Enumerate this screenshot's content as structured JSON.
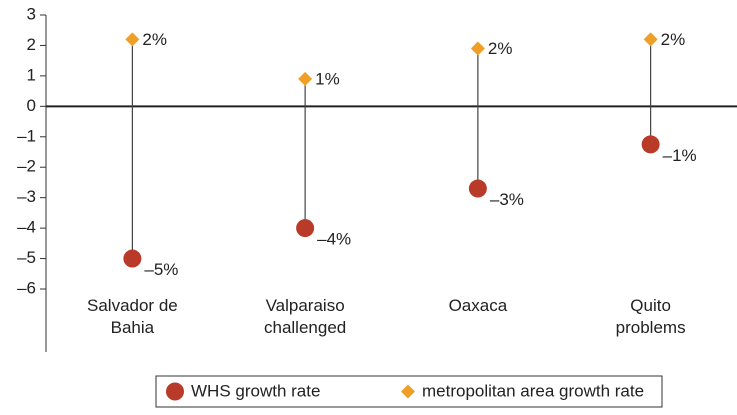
{
  "chart_data": {
    "type": "dot",
    "categories": [
      "Salvador de Bahia",
      "Valparaiso challenged",
      "Oaxaca",
      "Quito problems"
    ],
    "series": [
      {
        "name": "WHS growth rate",
        "color": "#b93a28",
        "marker": "circle",
        "values": [
          -5.0,
          -4.0,
          -2.7,
          -1.25
        ],
        "value_labels": [
          "–5%",
          "–4%",
          "–3%",
          "–1%"
        ]
      },
      {
        "name": "metropolitan area growth rate",
        "color": "#ef9f26",
        "marker": "diamond",
        "values": [
          2.2,
          0.9,
          1.9,
          2.2
        ],
        "value_labels": [
          "2%",
          "1%",
          "2%",
          "2%"
        ]
      }
    ],
    "ylim": [
      -6,
      3
    ],
    "yticks": [
      3,
      2,
      1,
      0,
      {
        "value": -1,
        "label": "–1"
      },
      {
        "value": -2,
        "label": "–2"
      },
      {
        "value": -3,
        "label": "–3"
      },
      {
        "value": -4,
        "label": "–4"
      },
      {
        "value": -5,
        "label": "–5"
      },
      {
        "value": -6,
        "label": "–6"
      }
    ],
    "legend": "bottom"
  }
}
